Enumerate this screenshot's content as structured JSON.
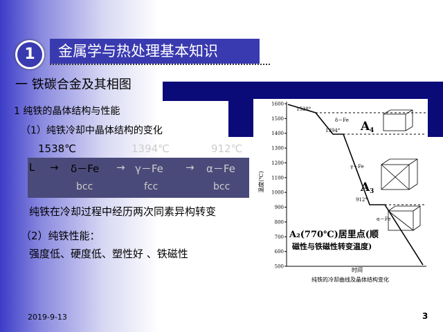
{
  "header": {
    "number": "1",
    "title": "金属学与热处理基本知识"
  },
  "section": "一  铁碳合金及其相图",
  "subsection": "1  纯铁的晶体结构与性能",
  "item1": {
    "title": "（1）纯铁冷却中晶体结构的变化",
    "temps": [
      "1538℃",
      "1394℃",
      "912℃"
    ],
    "phases": [
      "L",
      "δ－Fe",
      "γ－Fe",
      "α－Fe"
    ],
    "arrows": [
      "→",
      "→",
      "→"
    ],
    "lattices": [
      "bcc",
      "fcc",
      "bcc"
    ],
    "note": "纯铁在冷却过程中经历两次同素异构转变"
  },
  "item2": {
    "title": "（2）纯铁性能：",
    "text": "强度低、硬度低、塑性好 、铁磁性"
  },
  "figure": {
    "y_label": "温度(℃)",
    "x_label": "时间",
    "yticks": [
      "1600",
      "1500",
      "1400",
      "1300",
      "1200",
      "1100",
      "1000",
      "900",
      "800",
      "700",
      "600",
      "500"
    ],
    "annotations": [
      "1538°",
      "δ－Fe",
      "1394°",
      "A",
      "4",
      "γ－Fe",
      "A",
      "3",
      "912°",
      "α－Fe"
    ],
    "curie_line1": "A₂(770℃)居里点(顺",
    "curie_line2": "磁性与铁磁性转变温度)",
    "caption": "纯铁的冷却曲线及晶体结构变化"
  },
  "footer": {
    "date": "2019-9-13",
    "page": "3"
  }
}
